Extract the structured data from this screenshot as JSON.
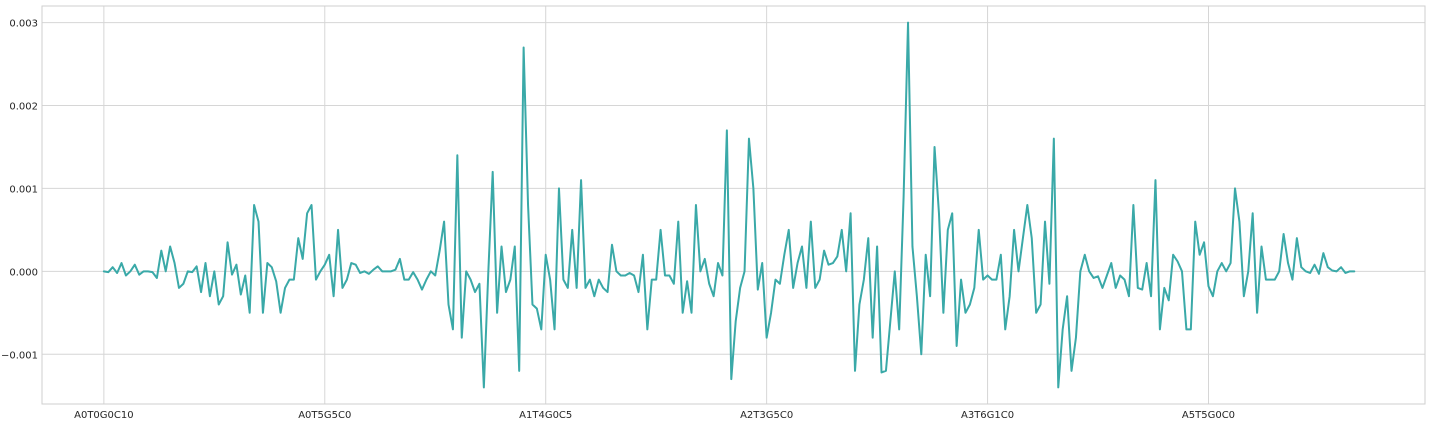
{
  "chart_data": {
    "type": "line",
    "title": "",
    "xlabel": "",
    "ylabel": "",
    "grid": true,
    "legend": "none",
    "colors": {
      "line": "#3aa9a8",
      "grid": "#d6d6d6",
      "frame": "#cfcfcf",
      "background": "#ffffff"
    },
    "x_tick_labels": [
      "A0T0G0C10",
      "A0T5G5C0",
      "A1T4G0C5",
      "A2T3G5C0",
      "A3T6G1C0",
      "A5T5G0C0"
    ],
    "x_tick_positions": [
      0,
      50,
      100,
      150,
      200,
      250
    ],
    "xlim": [
      -14,
      299
    ],
    "y_ticks": [
      -0.001,
      0.0,
      0.001,
      0.002,
      0.003
    ],
    "y_tick_labels": [
      "−0.001",
      "0.000",
      "0.001",
      "0.002",
      "0.003"
    ],
    "ylim": [
      -0.0016,
      0.0032
    ],
    "series": [
      {
        "values": [
          0.0,
          -1e-05,
          5e-05,
          -2e-05,
          0.0001,
          -5e-05,
          0.0,
          8e-05,
          -4e-05,
          0.0,
          0.0,
          -1e-05,
          -8e-05,
          0.00025,
          0.0,
          0.0003,
          0.0001,
          -0.0002,
          -0.00015,
          0.0,
          -1e-05,
          6e-05,
          -0.00025,
          0.0001,
          -0.0003,
          0.0,
          -0.0004,
          -0.0003,
          0.00035,
          -4e-05,
          8e-05,
          -0.00028,
          -5e-05,
          -0.0005,
          0.0008,
          0.0006,
          -0.0005,
          0.0001,
          5e-05,
          -0.00012,
          -0.0005,
          -0.0002,
          -0.0001,
          -0.0001,
          0.0004,
          0.00015,
          0.0007,
          0.0008,
          -0.0001,
          0.0,
          8e-05,
          0.0002,
          -0.0003,
          0.0005,
          -0.0002,
          -0.0001,
          0.0001,
          8e-05,
          -2e-05,
          0.0,
          -3e-05,
          2e-05,
          6e-05,
          0.0,
          0.0,
          0.0,
          2e-05,
          0.00015,
          -0.0001,
          -0.0001,
          -1e-05,
          -0.0001,
          -0.00022,
          -0.0001,
          0.0,
          -5e-05,
          0.00025,
          0.0006,
          -0.0004,
          -0.0007,
          0.0014,
          -0.0008,
          0.0,
          -0.0001,
          -0.00025,
          -0.00015,
          -0.0014,
          -2e-05,
          0.0012,
          -0.0005,
          0.0003,
          -0.00025,
          -0.0001,
          0.0003,
          -0.0012,
          0.0027,
          0.0008,
          -0.0004,
          -0.00045,
          -0.0007,
          0.0002,
          -0.0001,
          -0.0007,
          0.001,
          -0.0001,
          -0.0002,
          0.0005,
          -0.0002,
          0.0011,
          -0.0002,
          -0.0001,
          -0.0003,
          -0.0001,
          -0.0002,
          -0.00025,
          0.00032,
          0.0,
          -5e-05,
          -5e-05,
          -2e-05,
          -5e-05,
          -0.00025,
          0.0002,
          -0.0007,
          -0.0001,
          -0.0001,
          0.0005,
          -5e-05,
          -5e-05,
          -0.00015,
          0.0006,
          -0.0005,
          -0.00012,
          -0.0005,
          0.0008,
          0.0,
          0.00015,
          -0.00015,
          -0.0003,
          0.0001,
          -5e-05,
          0.0017,
          -0.0013,
          -0.0006,
          -0.0002,
          0.0,
          0.0016,
          0.001,
          -0.00022,
          0.0001,
          -0.0008,
          -0.0005,
          -0.0001,
          -0.00015,
          0.0002,
          0.0005,
          -0.0002,
          0.0001,
          0.0003,
          -0.0002,
          0.0006,
          -0.0002,
          -0.0001,
          0.00025,
          8e-05,
          0.0001,
          0.00018,
          0.0005,
          0.0,
          0.0007,
          -0.0012,
          -0.0004,
          -0.0001,
          0.0004,
          -0.0008,
          0.0003,
          -0.00122,
          -0.0012,
          -0.0006,
          0.0,
          -0.0007,
          0.0009,
          0.003,
          0.0003,
          -0.0003,
          -0.001,
          0.0002,
          -0.0003,
          0.0015,
          0.0007,
          -0.0005,
          0.0005,
          0.0007,
          -0.0009,
          -0.0001,
          -0.0005,
          -0.0004,
          -0.0002,
          0.0005,
          -0.0001,
          -5e-05,
          -0.0001,
          -0.0001,
          0.0002,
          -0.0007,
          -0.0003,
          0.0005,
          0.0,
          0.0004,
          0.0008,
          0.0004,
          -0.0005,
          -0.0004,
          0.0006,
          -0.00015,
          0.0016,
          -0.0014,
          -0.0007,
          -0.0003,
          -0.0012,
          -0.0008,
          0.0,
          0.0002,
          0.0,
          -8e-05,
          -6e-05,
          -0.0002,
          -5e-05,
          0.0001,
          -0.0002,
          -5e-05,
          -0.0001,
          -0.0003,
          0.0008,
          -0.0002,
          -0.00022,
          0.0001,
          -0.0003,
          0.0011,
          -0.0007,
          -0.0002,
          -0.00035,
          0.0002,
          0.00012,
          0.0,
          -0.0007,
          -0.0007,
          0.0006,
          0.0002,
          0.00035,
          -0.00018,
          -0.0003,
          0.0,
          0.0001,
          0.0,
          0.0001,
          0.001,
          0.0006,
          -0.0003,
          0.0,
          0.0007,
          -0.0005,
          0.0003,
          -0.0001,
          -0.0001,
          -0.0001,
          0.0,
          0.00045,
          0.0001,
          -0.0001,
          0.0004,
          5e-05,
          0.0,
          -2e-05,
          8e-05,
          -3e-05,
          0.00022,
          5e-05,
          1e-05,
          0.0,
          5e-05,
          -2e-05,
          0.0,
          0.0
        ]
      }
    ]
  }
}
